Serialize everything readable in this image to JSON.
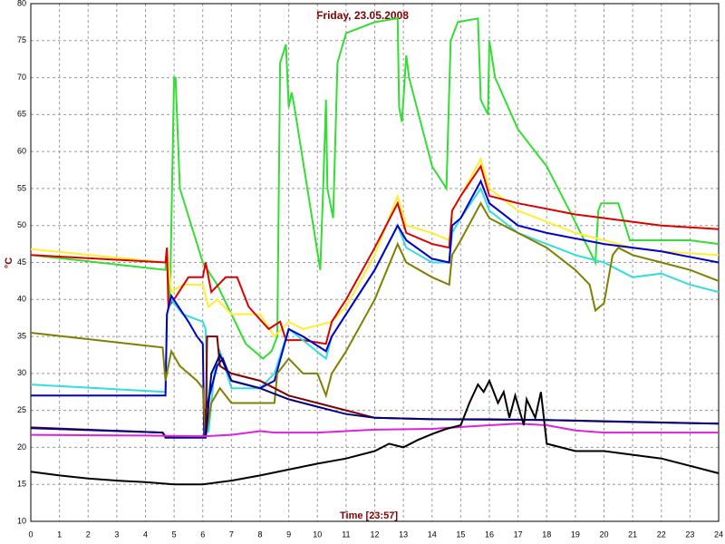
{
  "chart_data": {
    "type": "line",
    "title": "Friday, 23.05.2008",
    "xlabel": "Time [23:57]",
    "ylabel": "°C",
    "xlim": [
      0,
      24
    ],
    "ylim": [
      10,
      80
    ],
    "xticks": [
      0,
      1,
      2,
      3,
      4,
      5,
      6,
      7,
      8,
      9,
      10,
      11,
      12,
      13,
      14,
      15,
      16,
      17,
      18,
      19,
      20,
      21,
      22,
      23,
      24
    ],
    "yticks": [
      10,
      15,
      20,
      25,
      30,
      35,
      40,
      45,
      50,
      55,
      60,
      65,
      70,
      75,
      80
    ],
    "grid": true,
    "series": [
      {
        "color": "#33dd33",
        "x": [
          0,
          4.7,
          4.75,
          4.85,
          5.0,
          5.05,
          5.2,
          6,
          6.5,
          7.5,
          8.1,
          8.4,
          8.6,
          8.7,
          8.9,
          9.0,
          9.1,
          9.2,
          10.1,
          10.2,
          10.3,
          10.35,
          10.55,
          10.7,
          11.0,
          12.0,
          12.8,
          12.85,
          12.95,
          13.1,
          13.2,
          14.0,
          14.5,
          14.65,
          14.9,
          15.6,
          15.7,
          15.95,
          16.0,
          16.2,
          17,
          18,
          18.8,
          19.7,
          19.8,
          19.9,
          20.5,
          20.9,
          22,
          23,
          24
        ],
        "values": [
          46,
          44,
          47,
          39,
          70,
          70,
          55,
          45,
          42,
          34,
          32,
          33,
          35,
          72,
          74.5,
          66,
          68,
          66,
          44,
          55,
          67,
          55,
          51,
          72,
          76,
          77.5,
          78,
          66,
          64,
          73,
          70,
          58,
          55,
          75,
          77.5,
          78,
          67,
          65,
          75,
          70,
          63,
          58,
          52,
          45,
          52,
          53,
          53,
          48,
          48,
          48,
          47.5
        ]
      },
      {
        "color": "#ffee33",
        "x": [
          0,
          4.7,
          4.8,
          4.9,
          5.3,
          6,
          6.2,
          6.5,
          7,
          8,
          8.5,
          9,
          9.5,
          10.5,
          11,
          12,
          12.8,
          13.1,
          14,
          14.6,
          14.7,
          15,
          15.7,
          16,
          17,
          19,
          20,
          21,
          22,
          24
        ],
        "values": [
          46.8,
          45,
          45,
          41,
          42,
          42,
          39,
          40,
          38,
          38,
          35,
          37,
          36,
          37,
          39,
          46,
          54,
          50,
          49,
          48,
          52,
          54,
          59,
          55,
          52,
          49,
          48,
          47,
          46.5,
          46
        ]
      },
      {
        "color": "#dd0000",
        "x": [
          0,
          4.7,
          4.75,
          4.8,
          5,
          5.5,
          6,
          6.1,
          6.3,
          6.8,
          7.2,
          7.6,
          8.3,
          8.7,
          8.9,
          9.5,
          10.3,
          10.5,
          11,
          12,
          12.8,
          13.1,
          14,
          14.6,
          14.7,
          15,
          15.7,
          16,
          17,
          19,
          22,
          24
        ],
        "values": [
          46,
          45,
          47,
          39,
          40,
          43,
          43,
          45,
          41,
          43,
          43,
          39,
          36,
          37,
          34.5,
          34.5,
          34,
          37,
          40,
          47,
          53,
          49,
          47.5,
          47,
          52,
          54,
          58,
          54,
          53,
          51.5,
          50,
          49.5
        ]
      },
      {
        "color": "#33dddd",
        "x": [
          0,
          4.7,
          4.75,
          4.9,
          5.3,
          6,
          6.1,
          6.2,
          6.4,
          6.6,
          7,
          8,
          8.5,
          9,
          10.3,
          10.5,
          11,
          12,
          12.8,
          13.1,
          14,
          14.6,
          14.7,
          15,
          15.7,
          16,
          17,
          19,
          20,
          21,
          22,
          23,
          24
        ],
        "values": [
          28.5,
          27.5,
          38,
          40,
          38,
          37,
          36,
          22,
          30,
          33,
          28,
          28,
          30,
          36,
          32,
          35,
          38,
          44,
          50,
          47,
          45,
          45,
          49,
          51,
          55,
          52,
          49,
          46,
          45,
          43,
          43.5,
          42,
          41
        ]
      },
      {
        "color": "#0000cc",
        "x": [
          0,
          4.7,
          4.75,
          4.9,
          5.5,
          5.8,
          6.0,
          6.05,
          6.1,
          6.5,
          6.7,
          7,
          8,
          8.5,
          9,
          9.5,
          10.3,
          10.5,
          11,
          12,
          12.8,
          13.1,
          14,
          14.6,
          14.7,
          15,
          15.7,
          16,
          17,
          18,
          20,
          22,
          24
        ],
        "values": [
          27,
          27,
          38,
          40.5,
          37,
          35,
          34,
          21.5,
          25,
          31,
          32,
          29,
          28,
          29,
          36,
          35,
          33,
          35,
          38,
          44,
          50,
          48,
          45.5,
          45,
          50,
          51,
          56,
          53,
          50,
          49,
          47.5,
          46.5,
          45
        ]
      },
      {
        "color": "#808000",
        "x": [
          0,
          4.6,
          4.7,
          4.9,
          5.2,
          5.8,
          6.0,
          6.1,
          6.3,
          6.6,
          7,
          8,
          8.5,
          8.6,
          9,
          9.5,
          10,
          10.3,
          10.5,
          11,
          12,
          12.8,
          13.1,
          14,
          14.6,
          14.7,
          15,
          15.7,
          16,
          17,
          18,
          19,
          19.5,
          19.7,
          20,
          20.3,
          20.5,
          21,
          22,
          23,
          24
        ],
        "values": [
          35.5,
          33.5,
          29,
          33,
          31,
          29,
          28,
          21.3,
          26,
          28,
          26,
          26,
          26,
          30,
          32,
          30,
          30,
          27,
          30,
          33,
          40,
          47.5,
          45,
          43,
          42,
          46,
          48,
          53,
          51,
          49,
          47,
          44,
          42,
          38.5,
          39.5,
          46,
          47,
          46,
          45,
          44,
          42.5
        ]
      },
      {
        "color": "#800000",
        "x": [
          0,
          4.6,
          4.7,
          6.1,
          6.15,
          6.5,
          6.6,
          7,
          8,
          9,
          10,
          11,
          12,
          14,
          16,
          18,
          20,
          24
        ],
        "values": [
          22.7,
          22,
          21.5,
          21.5,
          35,
          35,
          31,
          30,
          29,
          27,
          26,
          25,
          24,
          23.8,
          23.8,
          23.7,
          23.5,
          23.2
        ]
      },
      {
        "color": "#000080",
        "x": [
          0,
          4.6,
          4.7,
          6.1,
          6.3,
          6.6,
          7,
          8,
          9,
          10,
          11,
          12,
          14,
          18,
          24
        ],
        "values": [
          22.6,
          22,
          21.3,
          21.3,
          30,
          32.5,
          29,
          28,
          26.5,
          25.5,
          24.5,
          24,
          23.8,
          23.7,
          23.2
        ]
      },
      {
        "color": "#dd22dd",
        "x": [
          0,
          4,
          6,
          7,
          8,
          8.5,
          10,
          12,
          14,
          16,
          17,
          18,
          19,
          20,
          22,
          24
        ],
        "values": [
          21.7,
          21.6,
          21.5,
          21.7,
          22.2,
          22,
          22,
          22.4,
          22.5,
          23,
          23.2,
          23,
          22.3,
          22,
          22,
          22
        ]
      },
      {
        "color": "#000000",
        "x": [
          0,
          1,
          2,
          3,
          4,
          5,
          6,
          7,
          8,
          9,
          10,
          11,
          12,
          12.5,
          13,
          13.5,
          14,
          14.5,
          15,
          15.3,
          15.6,
          15.8,
          16,
          16.3,
          16.5,
          16.7,
          16.9,
          17.2,
          17.3,
          17.6,
          17.8,
          18,
          19,
          20,
          21,
          22,
          23,
          24
        ],
        "values": [
          16.7,
          16.2,
          15.8,
          15.5,
          15.3,
          15,
          15,
          15.5,
          16.2,
          17,
          17.8,
          18.5,
          19.5,
          20.5,
          20,
          21,
          21.8,
          22.5,
          23,
          26,
          28.5,
          27.5,
          29,
          26,
          27.5,
          24,
          27,
          23,
          26.5,
          24,
          27.5,
          20.5,
          19.5,
          19.5,
          19,
          18.5,
          17.5,
          16.5
        ]
      }
    ]
  }
}
